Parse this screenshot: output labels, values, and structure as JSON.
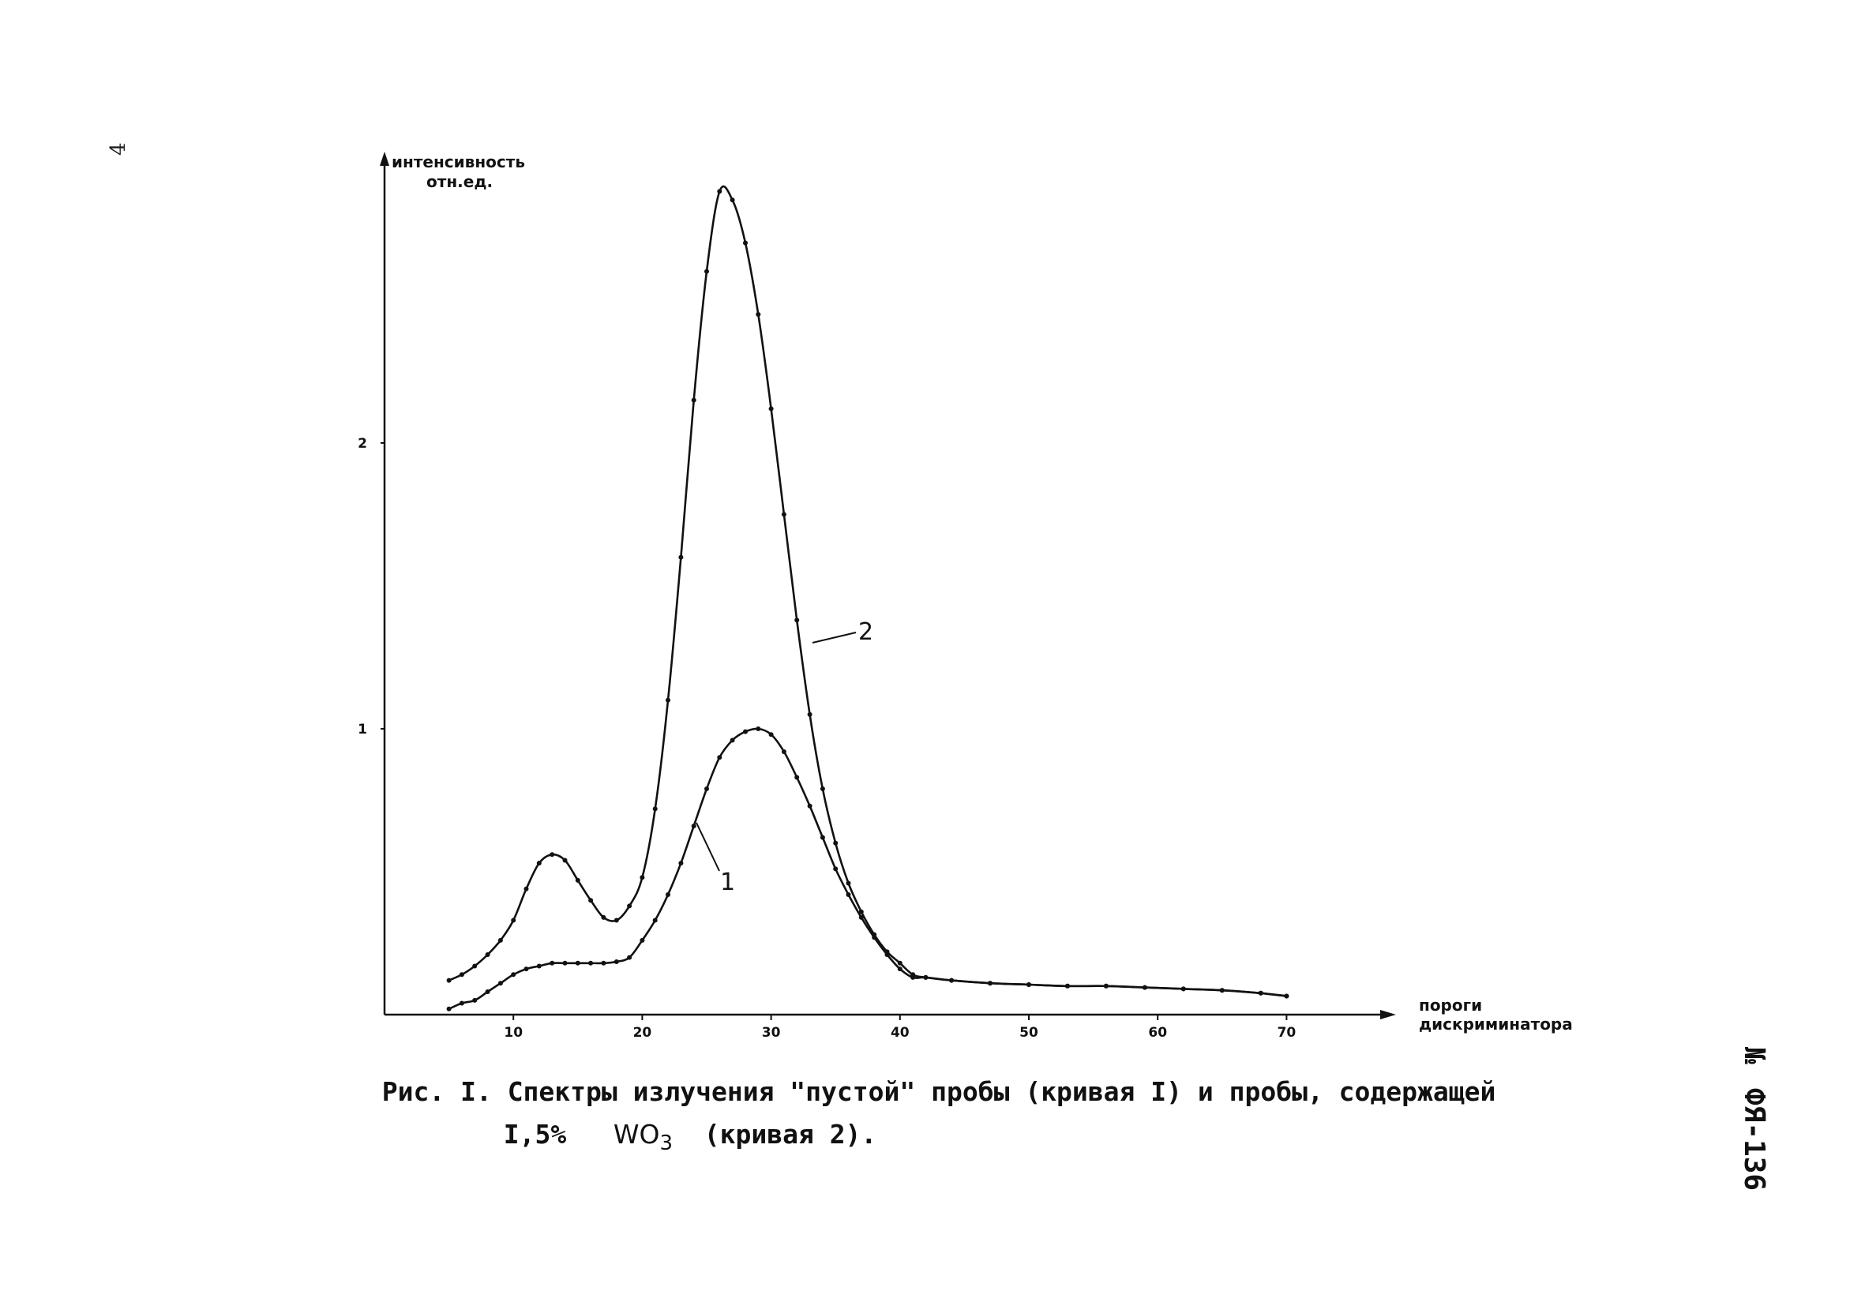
{
  "page": {
    "number": "4",
    "side_code": "ФЯ-136",
    "side_mark": "№"
  },
  "caption": {
    "line1": "Рис. I. Спектры излучения \"пустой\" пробы (кривая I) и пробы, содержащей",
    "line2_prefix": "I,5%",
    "formula_main": "WO",
    "formula_sub": "3",
    "line2_suffix": "(кривая 2)."
  },
  "chart_data": {
    "type": "line",
    "ylabel_line1": "интенсивность",
    "ylabel_line2": "отн.ед.",
    "xlabel_line1": "пороги",
    "xlabel_line2": "дискриминатора",
    "xlim": [
      0,
      78
    ],
    "ylim": [
      0,
      3
    ],
    "x_ticks": [
      "10",
      "20",
      "30",
      "40",
      "50",
      "60",
      "70"
    ],
    "y_ticks": [
      "1",
      "2"
    ],
    "grid": false,
    "series": [
      {
        "name": "1",
        "x": [
          5,
          6,
          7,
          8,
          9,
          10,
          11,
          12,
          13,
          14,
          15,
          16,
          17,
          18,
          19,
          20,
          21,
          22,
          23,
          24,
          25,
          26,
          27,
          28,
          29,
          30,
          31,
          32,
          33,
          34,
          35,
          36,
          37,
          38,
          39,
          40,
          41,
          42,
          44,
          47,
          50,
          53,
          56,
          59,
          62,
          65,
          68,
          70
        ],
        "y": [
          0.02,
          0.04,
          0.05,
          0.08,
          0.11,
          0.14,
          0.16,
          0.17,
          0.18,
          0.18,
          0.18,
          0.18,
          0.18,
          0.185,
          0.2,
          0.26,
          0.33,
          0.42,
          0.53,
          0.66,
          0.79,
          0.9,
          0.96,
          0.99,
          1.0,
          0.98,
          0.92,
          0.83,
          0.73,
          0.62,
          0.51,
          0.42,
          0.34,
          0.27,
          0.21,
          0.16,
          0.13,
          0.13,
          0.12,
          0.11,
          0.105,
          0.1,
          0.1,
          0.095,
          0.09,
          0.085,
          0.075,
          0.065
        ]
      },
      {
        "name": "2",
        "x": [
          5,
          6,
          7,
          8,
          9,
          10,
          11,
          12,
          13,
          14,
          15,
          16,
          17,
          18,
          19,
          20,
          21,
          22,
          23,
          24,
          25,
          26,
          27,
          28,
          29,
          30,
          31,
          32,
          33,
          34,
          35,
          36,
          37,
          38,
          39,
          40,
          41,
          42,
          44,
          47,
          50,
          53,
          56,
          59,
          62,
          65,
          68,
          70
        ],
        "y": [
          0.12,
          0.14,
          0.17,
          0.21,
          0.26,
          0.33,
          0.44,
          0.53,
          0.56,
          0.54,
          0.47,
          0.4,
          0.34,
          0.33,
          0.38,
          0.48,
          0.72,
          1.1,
          1.6,
          2.15,
          2.6,
          2.88,
          2.85,
          2.7,
          2.45,
          2.12,
          1.75,
          1.38,
          1.05,
          0.79,
          0.6,
          0.46,
          0.36,
          0.28,
          0.22,
          0.18,
          0.14,
          0.13,
          0.12,
          0.11,
          0.105,
          0.1,
          0.1,
          0.095,
          0.09,
          0.085,
          0.075,
          0.065
        ]
      }
    ]
  }
}
